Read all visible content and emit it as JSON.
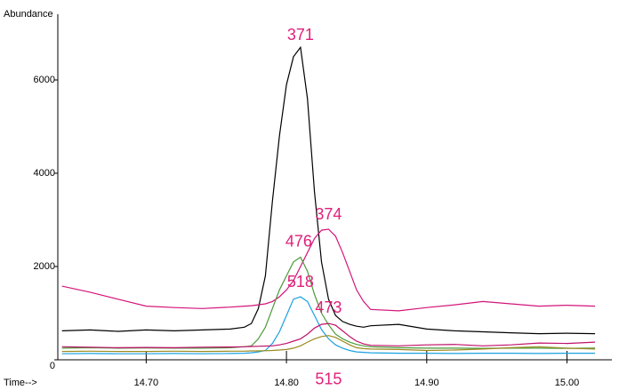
{
  "chart_data": {
    "type": "line",
    "y_label": "Abundance",
    "x_label": "Time-->",
    "xlim": [
      14.637,
      15.032
    ],
    "ylim": [
      0,
      7400
    ],
    "xticks": [
      {
        "value": 14.7,
        "label": "14.70"
      },
      {
        "value": 14.8,
        "label": "14.80"
      },
      {
        "value": 14.9,
        "label": "14.90"
      },
      {
        "value": 15.0,
        "label": "15.00"
      }
    ],
    "yticks": [
      0,
      2000,
      4000,
      6000
    ],
    "x": [
      14.64,
      14.66,
      14.68,
      14.7,
      14.72,
      14.74,
      14.76,
      14.77,
      14.775,
      14.78,
      14.785,
      14.79,
      14.795,
      14.8,
      14.805,
      14.81,
      14.815,
      14.82,
      14.825,
      14.83,
      14.835,
      14.84,
      14.845,
      14.85,
      14.855,
      14.86,
      14.88,
      14.9,
      14.92,
      14.94,
      14.96,
      14.98,
      15.0,
      15.02
    ],
    "series": [
      {
        "name": "371",
        "color": "#000000",
        "values": [
          620,
          640,
          610,
          640,
          620,
          640,
          660,
          700,
          780,
          1100,
          1800,
          3400,
          4800,
          5900,
          6500,
          6700,
          5600,
          3600,
          2100,
          1300,
          950,
          820,
          760,
          720,
          700,
          730,
          760,
          660,
          620,
          600,
          580,
          560,
          570,
          560
        ]
      },
      {
        "name": "374",
        "color": "#d4147a",
        "values": [
          1580,
          1450,
          1300,
          1150,
          1120,
          1100,
          1130,
          1150,
          1160,
          1180,
          1200,
          1250,
          1350,
          1500,
          1700,
          2000,
          2300,
          2600,
          2780,
          2800,
          2650,
          2300,
          1900,
          1500,
          1250,
          1080,
          1050,
          1120,
          1180,
          1250,
          1200,
          1150,
          1170,
          1150
        ]
      },
      {
        "name": "476",
        "color": "#4a9a3a",
        "values": [
          250,
          260,
          250,
          255,
          250,
          250,
          260,
          280,
          300,
          450,
          700,
          1100,
          1500,
          1800,
          2100,
          2200,
          1900,
          1400,
          1000,
          750,
          550,
          450,
          380,
          330,
          300,
          280,
          260,
          250,
          250,
          245,
          250,
          250,
          245,
          250
        ]
      },
      {
        "name": "518",
        "color": "#1aa0e0",
        "values": [
          130,
          135,
          130,
          130,
          135,
          130,
          135,
          140,
          150,
          170,
          200,
          350,
          600,
          950,
          1300,
          1350,
          1250,
          950,
          650,
          450,
          320,
          250,
          200,
          170,
          160,
          150,
          140,
          140,
          135,
          140,
          140,
          135,
          140,
          140
        ]
      },
      {
        "name": "473",
        "color": "#c0106a",
        "values": [
          280,
          270,
          260,
          265,
          260,
          270,
          275,
          280,
          285,
          290,
          295,
          300,
          320,
          350,
          400,
          450,
          550,
          680,
          760,
          780,
          740,
          620,
          500,
          400,
          340,
          310,
          300,
          320,
          330,
          300,
          320,
          360,
          350,
          380
        ]
      },
      {
        "name": "515",
        "color": "#9a8a20",
        "values": [
          180,
          185,
          180,
          180,
          185,
          180,
          185,
          185,
          190,
          190,
          195,
          200,
          210,
          220,
          250,
          300,
          380,
          450,
          500,
          520,
          480,
          400,
          320,
          260,
          240,
          230,
          220,
          200,
          210,
          230,
          260,
          280,
          250,
          230
        ]
      }
    ]
  }
}
